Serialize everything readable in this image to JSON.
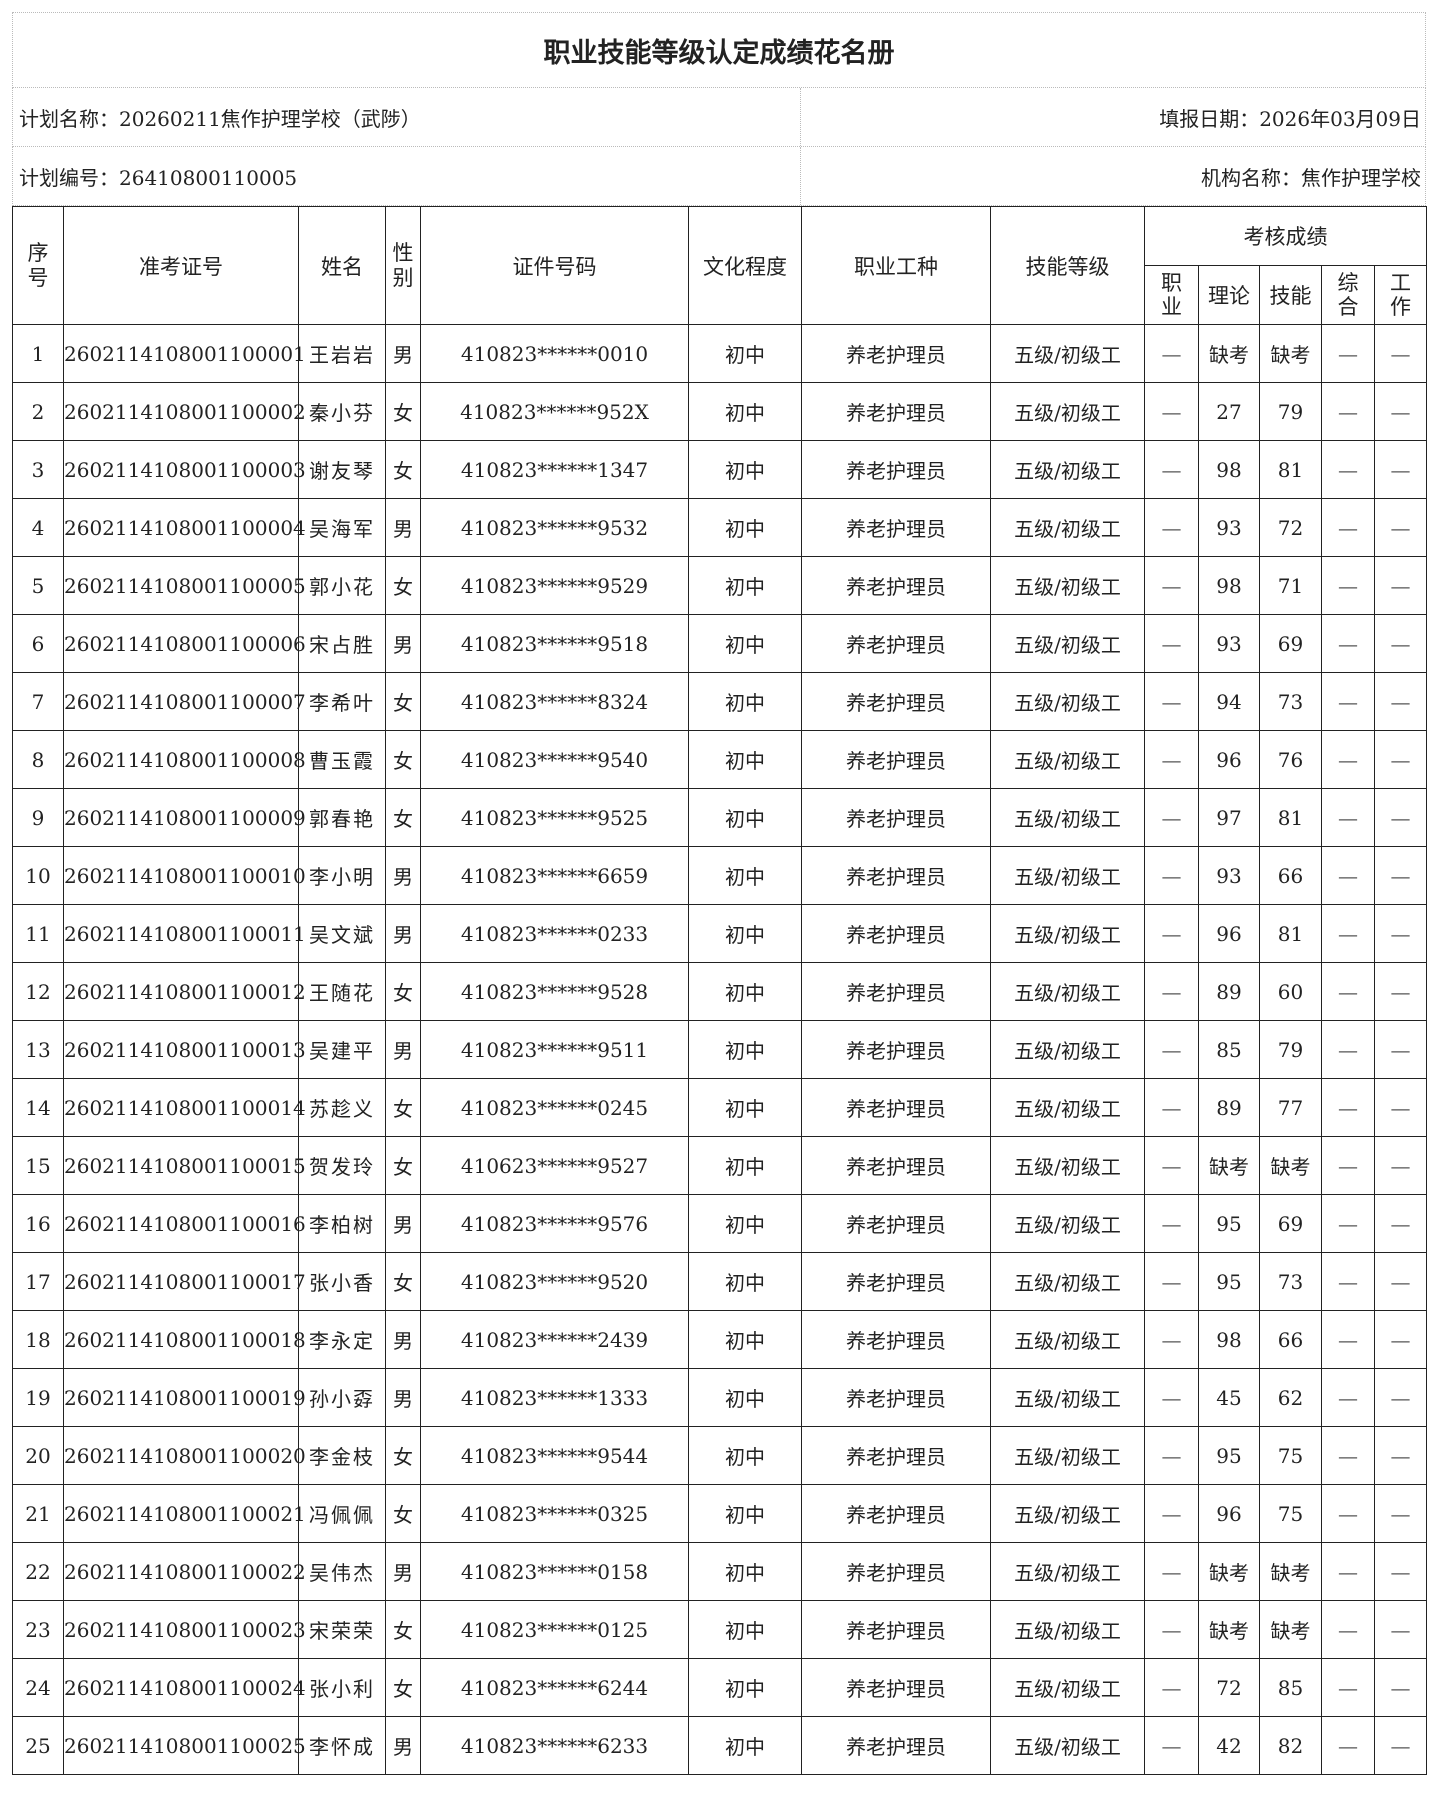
{
  "title": "职业技能等级认定成绩花名册",
  "info": {
    "plan_name": "计划名称：20260211焦作护理学校（武陟）",
    "report_date": "填报日期：2026年03月09日",
    "plan_no": "计划编号：26410800110005",
    "org_name": "机构名称：焦作护理学校"
  },
  "headers": {
    "seq": "序号",
    "ticket": "准考证号",
    "name": "姓名",
    "gender": "性别",
    "id": "证件号码",
    "edu": "文化程度",
    "job": "职业工种",
    "level": "技能等级",
    "scores": "考核成绩",
    "sub": [
      "职业",
      "理论",
      "技能",
      "综合",
      "工作"
    ]
  },
  "rows": [
    [
      "1",
      "2602114108001100001",
      "王岩岩",
      "男",
      "410823******0010",
      "初中",
      "养老护理员",
      "五级/初级工",
      "—",
      "缺考",
      "缺考",
      "—",
      "—"
    ],
    [
      "2",
      "2602114108001100002",
      "秦小芬",
      "女",
      "410823******952X",
      "初中",
      "养老护理员",
      "五级/初级工",
      "—",
      "27",
      "79",
      "—",
      "—"
    ],
    [
      "3",
      "2602114108001100003",
      "谢友琴",
      "女",
      "410823******1347",
      "初中",
      "养老护理员",
      "五级/初级工",
      "—",
      "98",
      "81",
      "—",
      "—"
    ],
    [
      "4",
      "2602114108001100004",
      "吴海军",
      "男",
      "410823******9532",
      "初中",
      "养老护理员",
      "五级/初级工",
      "—",
      "93",
      "72",
      "—",
      "—"
    ],
    [
      "5",
      "2602114108001100005",
      "郭小花",
      "女",
      "410823******9529",
      "初中",
      "养老护理员",
      "五级/初级工",
      "—",
      "98",
      "71",
      "—",
      "—"
    ],
    [
      "6",
      "2602114108001100006",
      "宋占胜",
      "男",
      "410823******9518",
      "初中",
      "养老护理员",
      "五级/初级工",
      "—",
      "93",
      "69",
      "—",
      "—"
    ],
    [
      "7",
      "2602114108001100007",
      "李希叶",
      "女",
      "410823******8324",
      "初中",
      "养老护理员",
      "五级/初级工",
      "—",
      "94",
      "73",
      "—",
      "—"
    ],
    [
      "8",
      "2602114108001100008",
      "曹玉霞",
      "女",
      "410823******9540",
      "初中",
      "养老护理员",
      "五级/初级工",
      "—",
      "96",
      "76",
      "—",
      "—"
    ],
    [
      "9",
      "2602114108001100009",
      "郭春艳",
      "女",
      "410823******9525",
      "初中",
      "养老护理员",
      "五级/初级工",
      "—",
      "97",
      "81",
      "—",
      "—"
    ],
    [
      "10",
      "2602114108001100010",
      "李小明",
      "男",
      "410823******6659",
      "初中",
      "养老护理员",
      "五级/初级工",
      "—",
      "93",
      "66",
      "—",
      "—"
    ],
    [
      "11",
      "2602114108001100011",
      "吴文斌",
      "男",
      "410823******0233",
      "初中",
      "养老护理员",
      "五级/初级工",
      "—",
      "96",
      "81",
      "—",
      "—"
    ],
    [
      "12",
      "2602114108001100012",
      "王随花",
      "女",
      "410823******9528",
      "初中",
      "养老护理员",
      "五级/初级工",
      "—",
      "89",
      "60",
      "—",
      "—"
    ],
    [
      "13",
      "2602114108001100013",
      "吴建平",
      "男",
      "410823******9511",
      "初中",
      "养老护理员",
      "五级/初级工",
      "—",
      "85",
      "79",
      "—",
      "—"
    ],
    [
      "14",
      "2602114108001100014",
      "苏趁义",
      "女",
      "410823******0245",
      "初中",
      "养老护理员",
      "五级/初级工",
      "—",
      "89",
      "77",
      "—",
      "—"
    ],
    [
      "15",
      "2602114108001100015",
      "贺发玲",
      "女",
      "410623******9527",
      "初中",
      "养老护理员",
      "五级/初级工",
      "—",
      "缺考",
      "缺考",
      "—",
      "—"
    ],
    [
      "16",
      "2602114108001100016",
      "李柏树",
      "男",
      "410823******9576",
      "初中",
      "养老护理员",
      "五级/初级工",
      "—",
      "95",
      "69",
      "—",
      "—"
    ],
    [
      "17",
      "2602114108001100017",
      "张小香",
      "女",
      "410823******9520",
      "初中",
      "养老护理员",
      "五级/初级工",
      "—",
      "95",
      "73",
      "—",
      "—"
    ],
    [
      "18",
      "2602114108001100018",
      "李永定",
      "男",
      "410823******2439",
      "初中",
      "养老护理员",
      "五级/初级工",
      "—",
      "98",
      "66",
      "—",
      "—"
    ],
    [
      "19",
      "2602114108001100019",
      "孙小孬",
      "男",
      "410823******1333",
      "初中",
      "养老护理员",
      "五级/初级工",
      "—",
      "45",
      "62",
      "—",
      "—"
    ],
    [
      "20",
      "2602114108001100020",
      "李金枝",
      "女",
      "410823******9544",
      "初中",
      "养老护理员",
      "五级/初级工",
      "—",
      "95",
      "75",
      "—",
      "—"
    ],
    [
      "21",
      "2602114108001100021",
      "冯佩佩",
      "女",
      "410823******0325",
      "初中",
      "养老护理员",
      "五级/初级工",
      "—",
      "96",
      "75",
      "—",
      "—"
    ],
    [
      "22",
      "2602114108001100022",
      "吴伟杰",
      "男",
      "410823******0158",
      "初中",
      "养老护理员",
      "五级/初级工",
      "—",
      "缺考",
      "缺考",
      "—",
      "—"
    ],
    [
      "23",
      "2602114108001100023",
      "宋荣荣",
      "女",
      "410823******0125",
      "初中",
      "养老护理员",
      "五级/初级工",
      "—",
      "缺考",
      "缺考",
      "—",
      "—"
    ],
    [
      "24",
      "2602114108001100024",
      "张小利",
      "女",
      "410823******6244",
      "初中",
      "养老护理员",
      "五级/初级工",
      "—",
      "72",
      "85",
      "—",
      "—"
    ],
    [
      "25",
      "2602114108001100025",
      "李怀成",
      "男",
      "410823******6233",
      "初中",
      "养老护理员",
      "五级/初级工",
      "—",
      "42",
      "82",
      "—",
      "—"
    ]
  ]
}
